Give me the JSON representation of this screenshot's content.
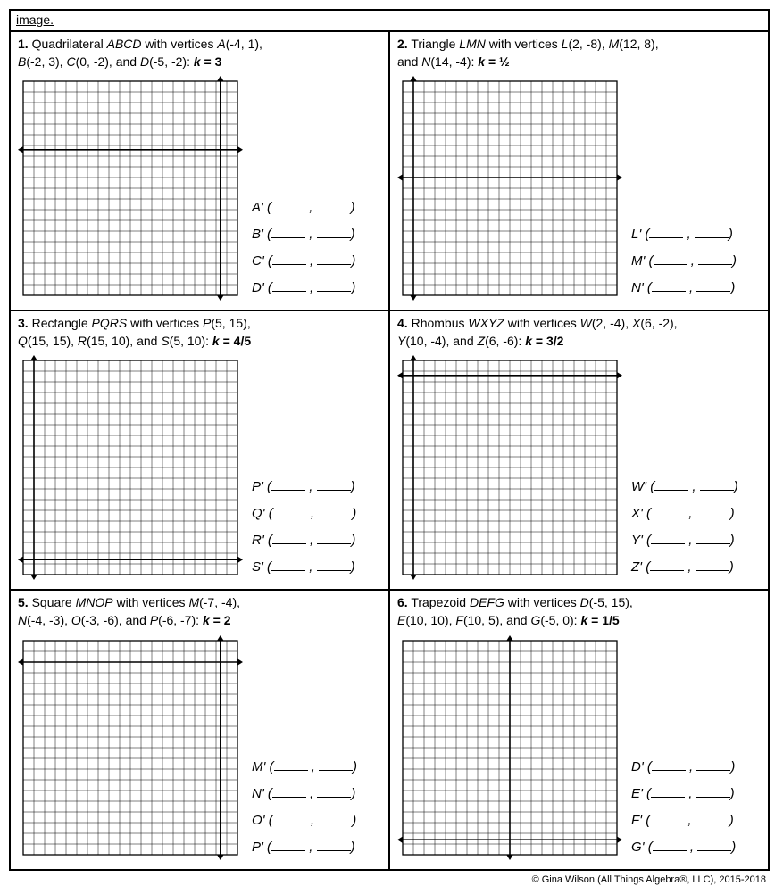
{
  "top_label": "image.",
  "footer": "© Gina Wilson (All Things Algebra®, LLC), 2015-2018",
  "grid_style": {
    "cells": 20,
    "size": 240,
    "grid_color": "#000000",
    "grid_stroke": 0.5,
    "axis_stroke": 1.6,
    "arrow": 6
  },
  "problems": [
    {
      "num": "1.",
      "prompt_html": "Quadrilateral <i>ABCD</i> with vertices <i>A</i>(-4, 1),<br><i>B</i>(-2, 3), <i>C</i>(0, -2), and <i>D</i>(-5, -2):  <b><i>k</i> = 3</b>",
      "answers": [
        "A'",
        "B'",
        "C'",
        "D'"
      ],
      "axis": {
        "x_pos": 0.92,
        "y_pos": 0.32
      }
    },
    {
      "num": "2.",
      "prompt_html": "Triangle <i>LMN</i> with vertices <i>L</i>(2, -8), <i>M</i>(12, 8),<br>and <i>N</i>(14, -4):  <b><i>k</i> = ½</b>",
      "answers": [
        "L'",
        "M'",
        "N'"
      ],
      "axis": {
        "x_pos": 0.05,
        "y_pos": 0.45
      }
    },
    {
      "num": "3.",
      "prompt_html": "Rectangle <i>PQRS</i> with vertices <i>P</i>(5, 15),<br><i>Q</i>(15, 15), <i>R</i>(15, 10), and <i>S</i>(5, 10):  <b><i>k</i> = 4/5</b>",
      "answers": [
        "P'",
        "Q'",
        "R'",
        "S'"
      ],
      "axis": {
        "x_pos": 0.05,
        "y_pos": 0.93
      }
    },
    {
      "num": "4.",
      "prompt_html": "Rhombus <i>WXYZ</i> with vertices <i>W</i>(2, -4), <i>X</i>(6, -2),<br><i>Y</i>(10, -4), and <i>Z</i>(6, -6):  <b><i>k</i> = 3/2</b>",
      "answers": [
        "W'",
        "X'",
        "Y'",
        "Z'"
      ],
      "axis": {
        "x_pos": 0.05,
        "y_pos": 0.07
      }
    },
    {
      "num": "5.",
      "prompt_html": "Square <i>MNOP</i> with vertices <i>M</i>(-7, -4),<br><i>N</i>(-4, -3), <i>O</i>(-3, -6), and <i>P</i>(-6, -7):  <b><i>k</i> = 2</b>",
      "answers": [
        "M'",
        "N'",
        "O'",
        "P'"
      ],
      "axis": {
        "x_pos": 0.92,
        "y_pos": 0.1
      }
    },
    {
      "num": "6.",
      "prompt_html": "Trapezoid <i>DEFG</i> with vertices <i>D</i>(-5, 15),<br><i>E</i>(10, 10), <i>F</i>(10, 5), and <i>G</i>(-5, 0):  <b><i>k</i> = 1/5</b>",
      "answers": [
        "D'",
        "E'",
        "F'",
        "G'"
      ],
      "axis": {
        "x_pos": 0.5,
        "y_pos": 0.93
      }
    }
  ]
}
